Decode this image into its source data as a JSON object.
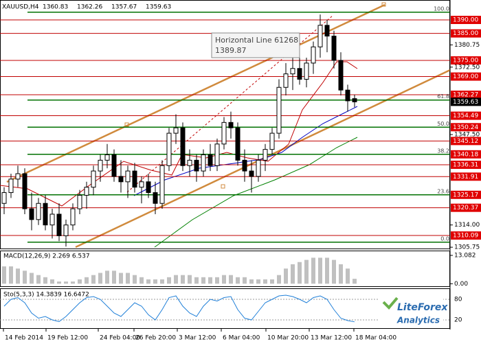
{
  "header": {
    "symbol": "XAUUSD,H4",
    "open": "1360.83",
    "high": "1362.26",
    "low": "1357.67",
    "close": "1359.63"
  },
  "price_axis": {
    "lim": [
      1305.27,
      1397.38
    ],
    "ticks": [
      {
        "value": 1380.75,
        "label": "1380.75"
      },
      {
        "value": 1372.5,
        "label": "1372.50"
      },
      {
        "value": 1347.5,
        "label": "1347.50"
      },
      {
        "value": 1314,
        "label": "1314.00"
      },
      {
        "value": 1305.75,
        "label": "1305.75"
      }
    ]
  },
  "horizontal_lines": [
    {
      "value": 1390,
      "label": "1390.00"
    },
    {
      "value": 1385,
      "label": "1385.00"
    },
    {
      "value": 1375,
      "label": "1375.00"
    },
    {
      "value": 1369,
      "label": "1369.00"
    },
    {
      "value": 1362.27,
      "label": "1362.27"
    },
    {
      "value": 1354.49,
      "label": "1354.49"
    },
    {
      "value": 1345.12,
      "label": "1345.12"
    },
    {
      "value": 1336.31,
      "label": "1336.31"
    },
    {
      "value": 1331.91,
      "label": "1331.91"
    },
    {
      "value": 1320.37,
      "label": "1320.37"
    },
    {
      "value": 1310.09,
      "label": "1310.09"
    }
  ],
  "fib_levels": [
    {
      "level": "100.0",
      "value": 1392.86
    },
    {
      "level": "61.8",
      "value": 1360.3
    },
    {
      "level": "50.0",
      "value": 1350.24,
      "label": "1350.24"
    },
    {
      "level": "38.2",
      "value": 1340.18,
      "label": "1340.18"
    },
    {
      "level": "23.6",
      "value": 1325.17,
      "label": "1325.17"
    },
    {
      "level": "0.0",
      "value": 1307.61
    }
  ],
  "current_price": {
    "value": 1359.63,
    "label": "1359.63"
  },
  "tooltip": {
    "title": "Horizontal Line 61268",
    "value": "1389.87"
  },
  "bars": [
    [
      1322,
      1328,
      1318,
      1326
    ],
    [
      1326,
      1333,
      1324,
      1331
    ],
    [
      1331,
      1336,
      1328,
      1333
    ],
    [
      1333,
      1335,
      1318,
      1320
    ],
    [
      1320,
      1326,
      1312,
      1316
    ],
    [
      1316,
      1324,
      1314,
      1322
    ],
    [
      1322,
      1325,
      1312,
      1314
    ],
    [
      1314,
      1320,
      1309,
      1318
    ],
    [
      1318,
      1322,
      1308,
      1310
    ],
    [
      1310,
      1316,
      1306,
      1314
    ],
    [
      1314,
      1322,
      1312,
      1320
    ],
    [
      1320,
      1327,
      1318,
      1325
    ],
    [
      1325,
      1330,
      1320,
      1328
    ],
    [
      1328,
      1336,
      1325,
      1334
    ],
    [
      1334,
      1340,
      1330,
      1338
    ],
    [
      1338,
      1344,
      1335,
      1340
    ],
    [
      1340,
      1342,
      1330,
      1332
    ],
    [
      1332,
      1338,
      1326,
      1330
    ],
    [
      1330,
      1336,
      1324,
      1334
    ],
    [
      1334,
      1337,
      1326,
      1328
    ],
    [
      1328,
      1332,
      1322,
      1330
    ],
    [
      1330,
      1333,
      1324,
      1326
    ],
    [
      1326,
      1330,
      1318,
      1322
    ],
    [
      1322,
      1338,
      1320,
      1336
    ],
    [
      1336,
      1350,
      1334,
      1348
    ],
    [
      1348,
      1355,
      1344,
      1350
    ],
    [
      1350,
      1352,
      1334,
      1336
    ],
    [
      1336,
      1342,
      1332,
      1338
    ],
    [
      1338,
      1340,
      1330,
      1334
    ],
    [
      1334,
      1342,
      1332,
      1340
    ],
    [
      1340,
      1344,
      1334,
      1336
    ],
    [
      1336,
      1346,
      1334,
      1344
    ],
    [
      1344,
      1354,
      1342,
      1352
    ],
    [
      1352,
      1356,
      1346,
      1350
    ],
    [
      1350,
      1352,
      1336,
      1338
    ],
    [
      1338,
      1342,
      1330,
      1334
    ],
    [
      1334,
      1338,
      1326,
      1332
    ],
    [
      1332,
      1340,
      1330,
      1338
    ],
    [
      1338,
      1344,
      1334,
      1342
    ],
    [
      1342,
      1350,
      1340,
      1348
    ],
    [
      1348,
      1368,
      1346,
      1365
    ],
    [
      1365,
      1374,
      1362,
      1370
    ],
    [
      1370,
      1376,
      1364,
      1372
    ],
    [
      1372,
      1378,
      1366,
      1368
    ],
    [
      1368,
      1376,
      1365,
      1374
    ],
    [
      1374,
      1382,
      1370,
      1380
    ],
    [
      1380,
      1392,
      1376,
      1388
    ],
    [
      1388,
      1390,
      1378,
      1384
    ],
    [
      1384,
      1386,
      1372,
      1375
    ],
    [
      1375,
      1378,
      1362,
      1364
    ],
    [
      1364,
      1366,
      1356,
      1360
    ],
    [
      1360.83,
      1362.26,
      1357.67,
      1359.63
    ]
  ],
  "macd": {
    "title": "MACD(12,26,9) 2.269 6.537",
    "lim": [
      -1.5,
      13.082
    ],
    "ticks": [
      {
        "value": 13.082,
        "label": "13.082"
      },
      {
        "value": 0,
        "label": "0.00"
      }
    ],
    "values": [
      8,
      8,
      7,
      6,
      5,
      4,
      3,
      2,
      1,
      1,
      1,
      2,
      3,
      4,
      5,
      6,
      6,
      5,
      5,
      4,
      3,
      2,
      2,
      2,
      3,
      4,
      4,
      4,
      3,
      3,
      3,
      3,
      4,
      4,
      3,
      3,
      2,
      2,
      2,
      2,
      4,
      7,
      9,
      10,
      11,
      12,
      12,
      12,
      11,
      9,
      7,
      2.269
    ]
  },
  "stochastic": {
    "title": "Sto(5,3,3) 14.3839 16.6472",
    "lim": [
      0,
      100
    ],
    "ticks": [
      80,
      20
    ],
    "values": [
      60,
      80,
      85,
      70,
      40,
      25,
      30,
      20,
      15,
      30,
      50,
      70,
      85,
      88,
      80,
      60,
      40,
      30,
      50,
      70,
      60,
      35,
      20,
      50,
      85,
      90,
      60,
      40,
      30,
      60,
      80,
      75,
      85,
      88,
      50,
      25,
      20,
      45,
      70,
      80,
      90,
      92,
      88,
      80,
      70,
      85,
      90,
      80,
      50,
      25,
      18,
      14.3839
    ]
  },
  "time_axis": [
    "14 Feb 2014",
    "19 Feb 12:00",
    "24 Feb 04:00",
    "26 Feb 20:00",
    "3 Mar 12:00",
    "6 Mar 04:00",
    "10 Mar 20:00",
    "13 Mar 12:00",
    "18 Mar 04:00"
  ],
  "logo": {
    "name": "LiteForex",
    "sub": "Analytics"
  }
}
